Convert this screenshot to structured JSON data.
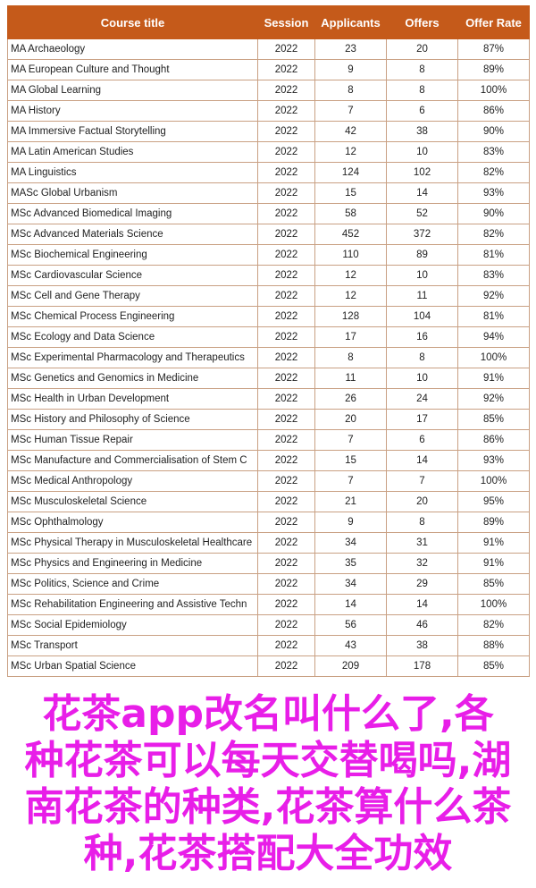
{
  "colors": {
    "header_bg": "#c55a1a",
    "border": "#c9a083",
    "overlay_text": "#e81ee8"
  },
  "table": {
    "headers": [
      "Course title",
      "Session",
      "Applicants",
      "Offers",
      "Offer Rate"
    ],
    "rows": [
      [
        "MA Archaeology",
        "2022",
        "23",
        "20",
        "87%"
      ],
      [
        "MA European Culture and Thought",
        "2022",
        "9",
        "8",
        "89%"
      ],
      [
        "MA Global Learning",
        "2022",
        "8",
        "8",
        "100%"
      ],
      [
        "MA History",
        "2022",
        "7",
        "6",
        "86%"
      ],
      [
        "MA Immersive Factual Storytelling",
        "2022",
        "42",
        "38",
        "90%"
      ],
      [
        "MA Latin American Studies",
        "2022",
        "12",
        "10",
        "83%"
      ],
      [
        "MA Linguistics",
        "2022",
        "124",
        "102",
        "82%"
      ],
      [
        "MASc Global Urbanism",
        "2022",
        "15",
        "14",
        "93%"
      ],
      [
        "MSc Advanced Biomedical Imaging",
        "2022",
        "58",
        "52",
        "90%"
      ],
      [
        "MSc Advanced Materials Science",
        "2022",
        "452",
        "372",
        "82%"
      ],
      [
        "MSc Biochemical Engineering",
        "2022",
        "110",
        "89",
        "81%"
      ],
      [
        "MSc Cardiovascular Science",
        "2022",
        "12",
        "10",
        "83%"
      ],
      [
        "MSc Cell and Gene Therapy",
        "2022",
        "12",
        "11",
        "92%"
      ],
      [
        "MSc Chemical Process Engineering",
        "2022",
        "128",
        "104",
        "81%"
      ],
      [
        "MSc Ecology and Data Science",
        "2022",
        "17",
        "16",
        "94%"
      ],
      [
        "MSc Experimental Pharmacology and Therapeutics",
        "2022",
        "8",
        "8",
        "100%"
      ],
      [
        "MSc Genetics and Genomics in Medicine",
        "2022",
        "11",
        "10",
        "91%"
      ],
      [
        "MSc Health in Urban Development",
        "2022",
        "26",
        "24",
        "92%"
      ],
      [
        "MSc History and Philosophy of Science",
        "2022",
        "20",
        "17",
        "85%"
      ],
      [
        "MSc Human Tissue Repair",
        "2022",
        "7",
        "6",
        "86%"
      ],
      [
        "MSc Manufacture and Commercialisation of Stem C",
        "2022",
        "15",
        "14",
        "93%"
      ],
      [
        "MSc Medical Anthropology",
        "2022",
        "7",
        "7",
        "100%"
      ],
      [
        "MSc Musculoskeletal Science",
        "2022",
        "21",
        "20",
        "95%"
      ],
      [
        "MSc Ophthalmology",
        "2022",
        "9",
        "8",
        "89%"
      ],
      [
        "MSc Physical Therapy in Musculoskeletal Healthcare",
        "2022",
        "34",
        "31",
        "91%"
      ],
      [
        "MSc Physics and Engineering in Medicine",
        "2022",
        "35",
        "32",
        "91%"
      ],
      [
        "MSc Politics, Science and Crime",
        "2022",
        "34",
        "29",
        "85%"
      ],
      [
        "MSc Rehabilitation Engineering and Assistive Techn",
        "2022",
        "14",
        "14",
        "100%"
      ],
      [
        "MSc Social Epidemiology",
        "2022",
        "56",
        "46",
        "82%"
      ],
      [
        "MSc Transport",
        "2022",
        "43",
        "38",
        "88%"
      ],
      [
        "MSc Urban Spatial Science",
        "2022",
        "209",
        "178",
        "85%"
      ]
    ]
  },
  "overlay": {
    "lines": [
      "花茶app改名叫什么了,各",
      "种花茶可以每天交替喝吗,湖",
      "南花茶的种类,花茶算什么茶",
      "种,花茶搭配大全功效"
    ]
  }
}
